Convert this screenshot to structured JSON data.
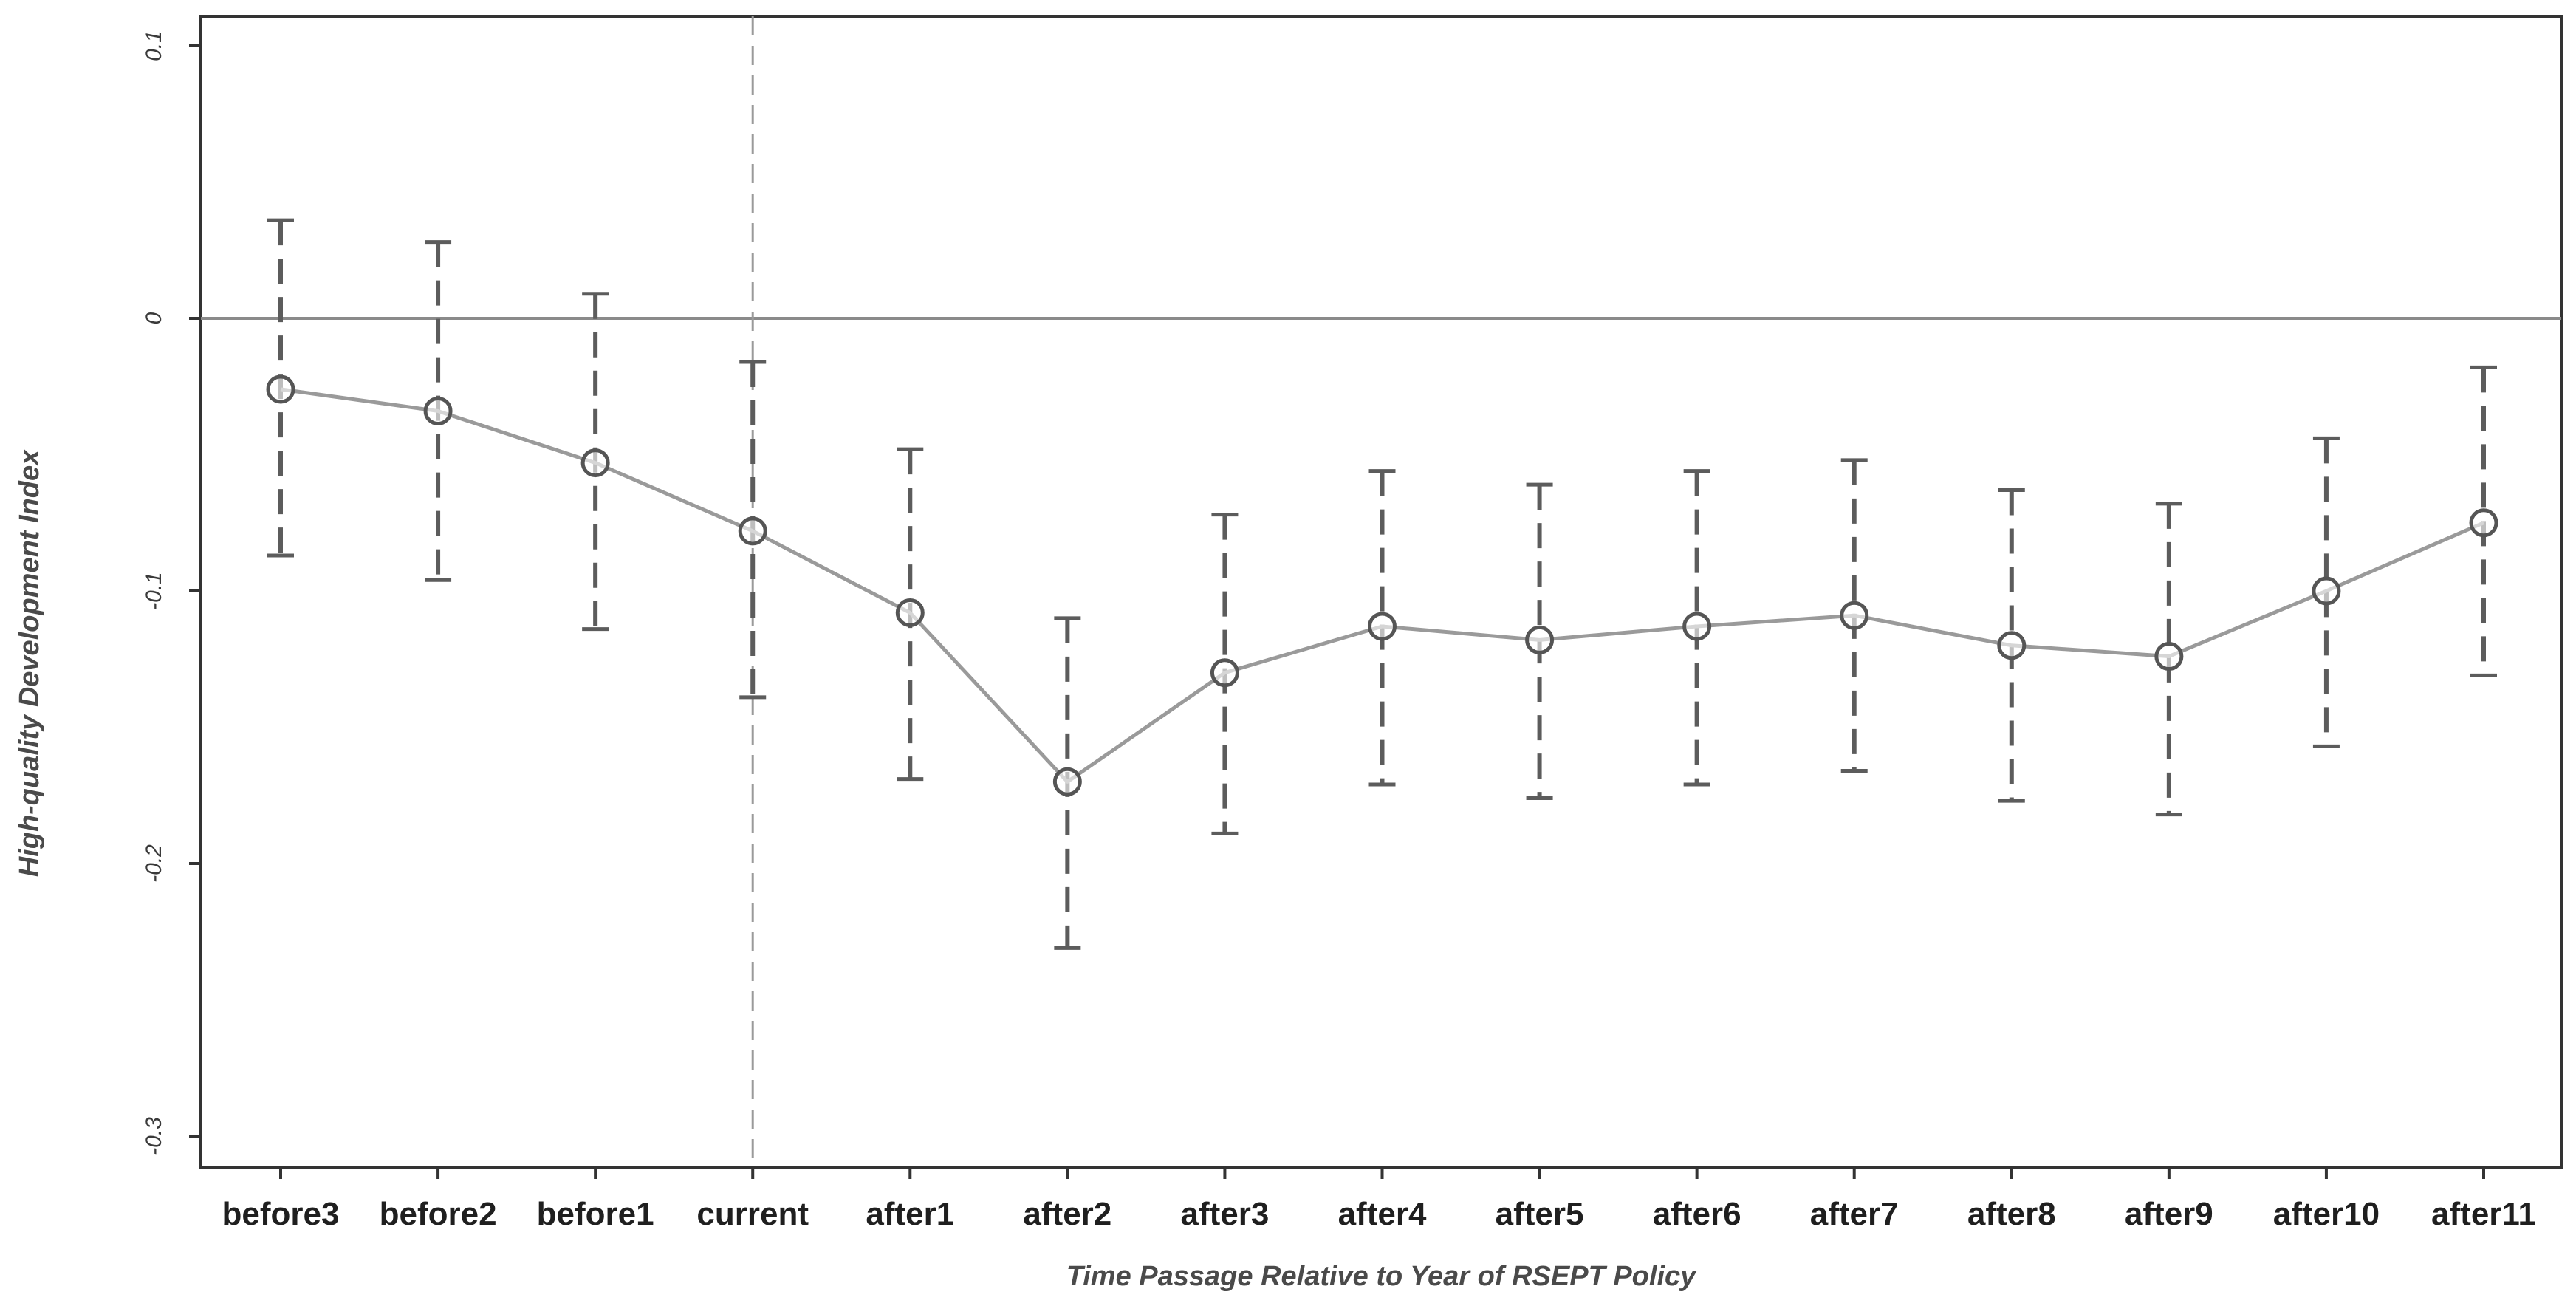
{
  "chart_data": {
    "type": "line",
    "title": "",
    "xlabel": "Time Passage Relative to Year of RSEPT Policy",
    "ylabel": "High-quality Development Index",
    "categories": [
      "before3",
      "before2",
      "before1",
      "current",
      "after1",
      "after2",
      "after3",
      "after4",
      "after5",
      "after6",
      "after7",
      "after8",
      "after9",
      "after10",
      "after11"
    ],
    "yticks": [
      {
        "value": 0.1,
        "label": "0.1"
      },
      {
        "value": 0,
        "label": "0"
      },
      {
        "value": -0.1,
        "label": "-0.1"
      },
      {
        "value": -0.2,
        "label": "-0.2"
      },
      {
        "value": -0.3,
        "label": "-0.3"
      }
    ],
    "ylim": [
      -0.31,
      0.11
    ],
    "series": [
      {
        "values": [
          -0.026,
          -0.034,
          -0.053,
          -0.078,
          -0.108,
          -0.17,
          -0.13,
          -0.113,
          -0.118,
          -0.113,
          -0.109,
          -0.12,
          -0.124,
          -0.1,
          -0.075
        ],
        "ci_low": [
          -0.087,
          -0.096,
          -0.114,
          -0.139,
          -0.169,
          -0.231,
          -0.189,
          -0.171,
          -0.176,
          -0.171,
          -0.166,
          -0.177,
          -0.182,
          -0.157,
          -0.131
        ],
        "ci_high": [
          0.036,
          0.028,
          0.009,
          -0.016,
          -0.048,
          -0.11,
          -0.072,
          -0.056,
          -0.061,
          -0.056,
          -0.052,
          -0.063,
          -0.068,
          -0.044,
          -0.018
        ]
      }
    ],
    "reference_lines": {
      "horizontal_at": 0,
      "vertical_at_category": "current"
    },
    "grid": false,
    "legend": "none",
    "colors": {
      "line": "#9a9a9a",
      "marker": "#555555",
      "error_bar": "#5c5c5c",
      "zero_line": "#8a8a8a",
      "vertical_line": "#9a9a9a",
      "frame": "#333333"
    }
  }
}
